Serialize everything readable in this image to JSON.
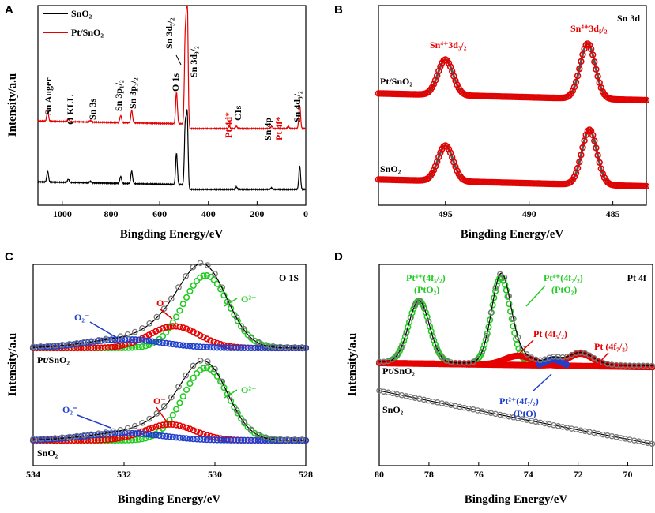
{
  "figure_labels": {
    "a": "A",
    "b": "B",
    "c": "C",
    "d": "D"
  },
  "chart_data": [
    {
      "id": "A",
      "type": "line",
      "title": "",
      "xlabel": "Bingding Energy/eV",
      "ylabel": "Intensity/a.u",
      "xlim": [
        1100,
        0
      ],
      "x_ticks": [
        1000,
        800,
        600,
        400,
        200,
        0
      ],
      "legend": [
        "SnO₂",
        "Pt/SnO₂"
      ],
      "series": [
        {
          "name": "SnO₂",
          "color": "#000000",
          "peaks": [
            {
              "x": 1060,
              "h": 14
            },
            {
              "x": 975,
              "h": 4
            },
            {
              "x": 885,
              "h": 2
            },
            {
              "x": 760,
              "h": 9
            },
            {
              "x": 715,
              "h": 16
            },
            {
              "x": 531,
              "h": 40
            },
            {
              "x": 495,
              "h": 75
            },
            {
              "x": 487,
              "h": 95
            },
            {
              "x": 285,
              "h": 3
            },
            {
              "x": 140,
              "h": 2
            },
            {
              "x": 25,
              "h": 30
            }
          ]
        },
        {
          "name": "Pt/SnO₂",
          "color": "#e60000",
          "peaks": [
            {
              "x": 1060,
              "h": 14
            },
            {
              "x": 975,
              "h": 4
            },
            {
              "x": 885,
              "h": 2
            },
            {
              "x": 760,
              "h": 9
            },
            {
              "x": 715,
              "h": 16
            },
            {
              "x": 531,
              "h": 40
            },
            {
              "x": 495,
              "h": 110
            },
            {
              "x": 487,
              "h": 170
            },
            {
              "x": 315,
              "h": 3
            },
            {
              "x": 285,
              "h": 3
            },
            {
              "x": 140,
              "h": 3
            },
            {
              "x": 72,
              "h": 3
            },
            {
              "x": 25,
              "h": 30
            }
          ]
        }
      ],
      "annotations": [
        {
          "text": "Sn Auger",
          "color": "#000000"
        },
        {
          "text": "O KLL",
          "color": "#000000"
        },
        {
          "text": "Sn 3s",
          "color": "#000000"
        },
        {
          "text": "Sn 3p₁/₂",
          "color": "#000000"
        },
        {
          "text": "Sn 3p₃/₂",
          "color": "#000000"
        },
        {
          "text": "O 1s",
          "color": "#000000"
        },
        {
          "text": "Sn 3d₅/₂",
          "color": "#000000"
        },
        {
          "text": "Sn 3d₃/₂",
          "color": "#000000"
        },
        {
          "text": "Pt 4d*",
          "color": "#e60000"
        },
        {
          "text": "C1s",
          "color": "#000000"
        },
        {
          "text": "Sn 4p",
          "color": "#000000"
        },
        {
          "text": "Pt 4f*",
          "color": "#e60000"
        },
        {
          "text": "Sn 4d₃/₂",
          "color": "#000000"
        }
      ]
    },
    {
      "id": "B",
      "type": "scatter",
      "title": "Sn 3d",
      "xlabel": "Bingding Energy/eV",
      "ylabel": "",
      "xlim": [
        499,
        483
      ],
      "x_ticks": [
        495,
        490,
        485
      ],
      "samples": [
        {
          "name": "Pt/SnO₂",
          "peaks": [
            {
              "x": 495.0,
              "h": 1.0
            },
            {
              "x": 486.5,
              "h": 1.55
            }
          ]
        },
        {
          "name": "SnO₂",
          "peaks": [
            {
              "x": 495.0,
              "h": 1.0
            },
            {
              "x": 486.4,
              "h": 1.55
            }
          ]
        }
      ],
      "annotations": [
        {
          "text": "Sn⁴⁺3d₃/₂",
          "color": "#e60000"
        },
        {
          "text": "Sn⁴⁺3d₅/₂",
          "color": "#e60000"
        }
      ]
    },
    {
      "id": "C",
      "type": "scatter",
      "title": "O 1S",
      "xlabel": "Bingding Energy/eV",
      "ylabel": "Intensity/a.u",
      "xlim": [
        534,
        528
      ],
      "x_ticks": [
        534,
        532,
        530,
        528
      ],
      "samples": [
        {
          "name": "Pt/SnO₂",
          "components": [
            {
              "name": "O²⁻",
              "center": 530.2,
              "h": 1.0,
              "color": "#22cc22"
            },
            {
              "name": "O⁻",
              "center": 530.9,
              "h": 0.3,
              "color": "#e60000"
            },
            {
              "name": "O₂⁻",
              "center": 532.0,
              "h": 0.12,
              "color": "#1f3fcc"
            }
          ]
        },
        {
          "name": "SnO₂",
          "components": [
            {
              "name": "O²⁻",
              "center": 530.2,
              "h": 1.0,
              "color": "#22cc22"
            },
            {
              "name": "O⁻",
              "center": 531.0,
              "h": 0.22,
              "color": "#e60000"
            },
            {
              "name": "O₂⁻",
              "center": 532.0,
              "h": 0.1,
              "color": "#1f3fcc"
            }
          ]
        }
      ],
      "annotations": [
        {
          "text": "O²⁻",
          "color": "#22cc22"
        },
        {
          "text": "O⁻",
          "color": "#e60000"
        },
        {
          "text": "O₂⁻",
          "color": "#1f3fcc"
        }
      ]
    },
    {
      "id": "D",
      "type": "scatter",
      "title": "Pt 4f",
      "xlabel": "Bingding Energy/eV",
      "ylabel": "Intensity/a.u",
      "xlim": [
        80,
        69
      ],
      "x_ticks": [
        80,
        78,
        76,
        74,
        72,
        70
      ],
      "samples": [
        {
          "name": "Pt/SnO₂",
          "components": [
            {
              "name": "Pt⁴⁺(4f₅/₂)",
              "center": 78.4,
              "h": 1.0,
              "color": "#22cc22"
            },
            {
              "name": "Pt⁴⁺(4f₇/₂)",
              "center": 75.1,
              "h": 1.4,
              "color": "#22cc22"
            },
            {
              "name": "Pt (4f₅/₂)",
              "center": 74.4,
              "h": 0.15,
              "color": "#e60000"
            },
            {
              "name": "Pt (4f₇/₂)",
              "center": 71.9,
              "h": 0.2,
              "color": "#e60000"
            },
            {
              "name": "Pt²⁺(4f₇/₂)",
              "center": 73.0,
              "h": 0.1,
              "color": "#1f3fcc"
            }
          ]
        },
        {
          "name": "SnO₂",
          "trend": "decreasing background"
        }
      ],
      "annotations": [
        {
          "text": "Pt⁴⁺(4f₅/₂)",
          "color": "#22cc22"
        },
        {
          "text": "(PtO₂)",
          "color": "#22cc22"
        },
        {
          "text": "Pt⁴⁺(4f₇/₂)",
          "color": "#22cc22"
        },
        {
          "text": "(PtO₂)",
          "color": "#22cc22"
        },
        {
          "text": "Pt (4f₅/₂)",
          "color": "#e60000"
        },
        {
          "text": "Pt (4f₇/₂)",
          "color": "#e60000"
        },
        {
          "text": "Pt²⁺(4f₇/₂)",
          "color": "#1f3fcc"
        },
        {
          "text": "(PtO)",
          "color": "#1f3fcc"
        }
      ]
    }
  ]
}
